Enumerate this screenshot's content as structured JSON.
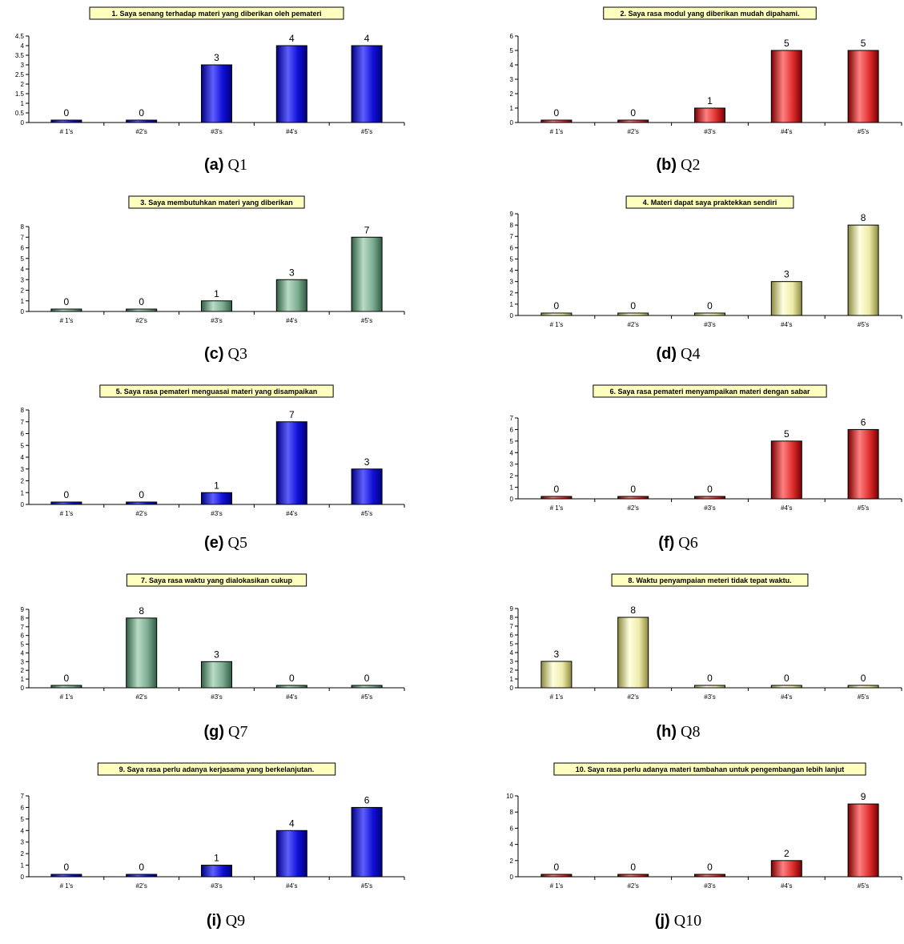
{
  "colors": {
    "blue": {
      "light": "#5f5fff",
      "base": "#1010d8",
      "dark": "#000080"
    },
    "red": {
      "light": "#ff8080",
      "base": "#e03030",
      "dark": "#7a0000"
    },
    "green": {
      "light": "#b8dcc6",
      "base": "#7fad92",
      "dark": "#2f5e44"
    },
    "yellow": {
      "light": "#ffffe0",
      "base": "#eeeba8",
      "dark": "#8c8a40"
    },
    "title_bg": "#ffffc0"
  },
  "chart_data": [
    {
      "type": "bar",
      "id": "q1",
      "caption_letter": "(a)",
      "caption_q": "Q1",
      "color": "blue",
      "title": "1.  Saya senang terhadap materi yang diberikan oleh pemateri",
      "categories": [
        "# 1's",
        "#2's",
        "#3's",
        "#4's",
        "#5's"
      ],
      "values": [
        0,
        0,
        3,
        4,
        4
      ],
      "ylim": [
        0,
        4.5
      ],
      "yticks": [
        "0",
        "0.5",
        "1",
        "1.5",
        "2",
        "2.5",
        "3",
        "3.5",
        "4",
        "4.5"
      ]
    },
    {
      "type": "bar",
      "id": "q2",
      "caption_letter": "(b)",
      "caption_q": "Q2",
      "color": "red",
      "title": "2.  Saya rasa modul yang diberikan mudah dipahami.",
      "categories": [
        "# 1's",
        "#2's",
        "#3's",
        "#4's",
        "#5's"
      ],
      "values": [
        0,
        0,
        1,
        5,
        5
      ],
      "ylim": [
        0,
        6
      ],
      "yticks": [
        "0",
        "1",
        "2",
        "3",
        "4",
        "5",
        "6"
      ]
    },
    {
      "type": "bar",
      "id": "q3",
      "caption_letter": "(c)",
      "caption_q": "Q3",
      "color": "green",
      "title": "3. Saya membutuhkan materi yang diberikan",
      "categories": [
        "# 1's",
        "#2's",
        "#3's",
        "#4's",
        "#5's"
      ],
      "values": [
        0,
        0,
        1,
        3,
        7
      ],
      "ylim": [
        0,
        8
      ],
      "yticks": [
        "0",
        "1",
        "2",
        "3",
        "4",
        "5",
        "6",
        "7",
        "8"
      ]
    },
    {
      "type": "bar",
      "id": "q4",
      "caption_letter": "(d)",
      "caption_q": "Q4",
      "color": "yellow",
      "title": "4. Materi dapat saya praktekkan sendiri",
      "categories": [
        "# 1's",
        "#2's",
        "#3's",
        "#4's",
        "#5's"
      ],
      "values": [
        0,
        0,
        0,
        3,
        8
      ],
      "ylim": [
        0,
        9
      ],
      "yticks": [
        "0",
        "1",
        "2",
        "3",
        "4",
        "5",
        "6",
        "7",
        "8",
        "9"
      ]
    },
    {
      "type": "bar",
      "id": "q5",
      "caption_letter": "(e)",
      "caption_q": "Q5",
      "color": "blue",
      "title": "5. Saya rasa pemateri menguasai materi yang disampaikan",
      "categories": [
        "# 1's",
        "#2's",
        "#3's",
        "#4's",
        "#5's"
      ],
      "values": [
        0,
        0,
        1,
        7,
        3
      ],
      "ylim": [
        0,
        8
      ],
      "yticks": [
        "0",
        "1",
        "2",
        "3",
        "4",
        "5",
        "6",
        "7",
        "8"
      ]
    },
    {
      "type": "bar",
      "id": "q6",
      "caption_letter": "(f)",
      "caption_q": "Q6",
      "color": "red",
      "title": "6.  Saya rasa pemateri menyampaikan materi dengan sabar",
      "categories": [
        "# 1's",
        "#2's",
        "#3's",
        "#4's",
        "#5's"
      ],
      "values": [
        0,
        0,
        0,
        5,
        6
      ],
      "ylim": [
        0,
        7
      ],
      "yticks": [
        "0",
        "1",
        "2",
        "3",
        "4",
        "5",
        "6",
        "7"
      ]
    },
    {
      "type": "bar",
      "id": "q7",
      "caption_letter": "(g)",
      "caption_q": "Q7",
      "color": "green",
      "title": "7. Saya rasa waktu yang dialokasikan cukup",
      "categories": [
        "# 1's",
        "#2's",
        "#3's",
        "#4's",
        "#5's"
      ],
      "values": [
        0,
        8,
        3,
        0,
        0
      ],
      "ylim": [
        0,
        9
      ],
      "yticks": [
        "0",
        "1",
        "2",
        "3",
        "4",
        "5",
        "6",
        "7",
        "8",
        "9"
      ]
    },
    {
      "type": "bar",
      "id": "q8",
      "caption_letter": "(h)",
      "caption_q": "Q8",
      "color": "yellow",
      "title": "8. Waktu penyampaian meteri tidak tepat waktu.",
      "categories": [
        "# 1's",
        "#2's",
        "#3's",
        "#4's",
        "#5's"
      ],
      "values": [
        3,
        8,
        0,
        0,
        0
      ],
      "ylim": [
        0,
        9
      ],
      "yticks": [
        "0",
        "1",
        "2",
        "3",
        "4",
        "5",
        "6",
        "7",
        "8",
        "9"
      ]
    },
    {
      "type": "bar",
      "id": "q9",
      "caption_letter": "(i)",
      "caption_q": "Q9",
      "color": "blue",
      "title": "9.  Saya rasa perlu adanya kerjasama yang berkelanjutan.",
      "categories": [
        "# 1's",
        "#2's",
        "#3's",
        "#4's",
        "#5's"
      ],
      "values": [
        0,
        0,
        1,
        4,
        6
      ],
      "ylim": [
        0,
        7
      ],
      "yticks": [
        "0",
        "1",
        "2",
        "3",
        "4",
        "5",
        "6",
        "7"
      ]
    },
    {
      "type": "bar",
      "id": "q10",
      "caption_letter": "(j)",
      "caption_q": "Q10",
      "color": "red",
      "title": "10. Saya rasa perlu adanya materi tambahan untuk pengembangan lebih lanjut",
      "categories": [
        "# 1's",
        "#2's",
        "#3's",
        "#4's",
        "#5's"
      ],
      "values": [
        0,
        0,
        0,
        2,
        9
      ],
      "ylim": [
        0,
        10
      ],
      "yticks": [
        "0",
        "2",
        "4",
        "6",
        "8",
        "10"
      ]
    }
  ]
}
